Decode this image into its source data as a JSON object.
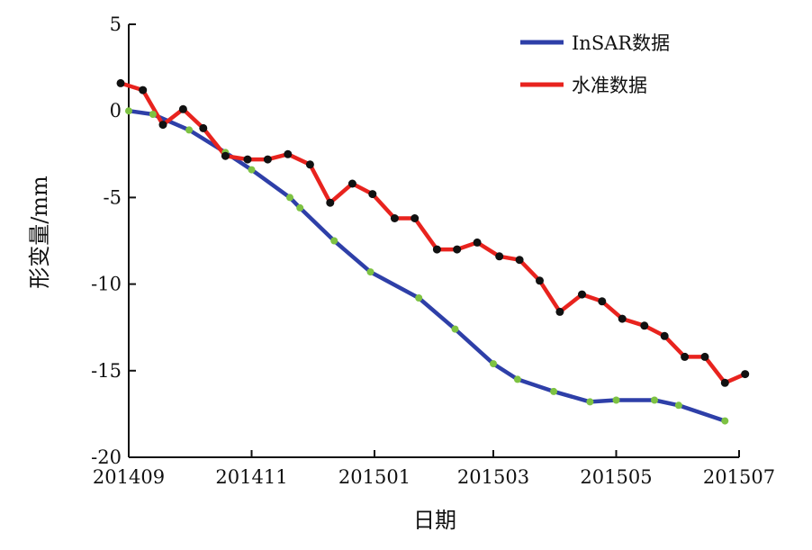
{
  "chart_data": {
    "type": "line",
    "title": "",
    "xlabel": "日期",
    "ylabel": "形变量/mm",
    "x_ticks": [
      "201409",
      "201411",
      "201501",
      "201503",
      "201505",
      "201507"
    ],
    "y_ticks": [
      "5",
      "0",
      "-5",
      "-10",
      "-15",
      "-20"
    ],
    "ylim": [
      -20,
      5
    ],
    "xlim": [
      "2014-09-01",
      "2015-07-01"
    ],
    "grid": false,
    "legend_position": "top-right",
    "series": [
      {
        "name": "InSAR数据",
        "color": "#2E3FA8",
        "marker_color": "#7DC242",
        "points": [
          {
            "x": "2014-09-01",
            "y": 0.0
          },
          {
            "x": "2014-09-13",
            "y": -0.2
          },
          {
            "x": "2014-10-01",
            "y": -1.1
          },
          {
            "x": "2014-10-19",
            "y": -2.4
          },
          {
            "x": "2014-11-01",
            "y": -3.4
          },
          {
            "x": "2014-11-20",
            "y": -5.0
          },
          {
            "x": "2014-11-25",
            "y": -5.6
          },
          {
            "x": "2014-12-12",
            "y": -7.5
          },
          {
            "x": "2014-12-30",
            "y": -9.3
          },
          {
            "x": "2015-01-23",
            "y": -10.8
          },
          {
            "x": "2015-02-10",
            "y": -12.6
          },
          {
            "x": "2015-03-01",
            "y": -14.6
          },
          {
            "x": "2015-03-13",
            "y": -15.5
          },
          {
            "x": "2015-03-31",
            "y": -16.2
          },
          {
            "x": "2015-04-18",
            "y": -16.8
          },
          {
            "x": "2015-05-01",
            "y": -16.7
          },
          {
            "x": "2015-05-20",
            "y": -16.7
          },
          {
            "x": "2015-06-01",
            "y": -17.0
          },
          {
            "x": "2015-06-24",
            "y": -17.9
          }
        ]
      },
      {
        "name": "水准数据",
        "color": "#E8231E",
        "marker_color": "#111111",
        "points": [
          {
            "x": "2014-08-28",
            "y": 1.6
          },
          {
            "x": "2014-09-08",
            "y": 1.2
          },
          {
            "x": "2014-09-18",
            "y": -0.8
          },
          {
            "x": "2014-09-28",
            "y": 0.1
          },
          {
            "x": "2014-10-08",
            "y": -1.0
          },
          {
            "x": "2014-10-19",
            "y": -2.6
          },
          {
            "x": "2014-10-30",
            "y": -2.8
          },
          {
            "x": "2014-11-09",
            "y": -2.8
          },
          {
            "x": "2014-11-19",
            "y": -2.5
          },
          {
            "x": "2014-11-30",
            "y": -3.1
          },
          {
            "x": "2014-12-10",
            "y": -5.3
          },
          {
            "x": "2014-12-21",
            "y": -4.2
          },
          {
            "x": "2014-12-31",
            "y": -4.8
          },
          {
            "x": "2015-01-11",
            "y": -6.2
          },
          {
            "x": "2015-01-21",
            "y": -6.2
          },
          {
            "x": "2015-02-01",
            "y": -8.0
          },
          {
            "x": "2015-02-11",
            "y": -8.0
          },
          {
            "x": "2015-02-21",
            "y": -7.6
          },
          {
            "x": "2015-03-04",
            "y": -8.4
          },
          {
            "x": "2015-03-14",
            "y": -8.6
          },
          {
            "x": "2015-03-24",
            "y": -9.8
          },
          {
            "x": "2015-04-03",
            "y": -11.6
          },
          {
            "x": "2015-04-14",
            "y": -10.6
          },
          {
            "x": "2015-04-24",
            "y": -11.0
          },
          {
            "x": "2015-05-04",
            "y": -12.0
          },
          {
            "x": "2015-05-15",
            "y": -12.4
          },
          {
            "x": "2015-05-25",
            "y": -13.0
          },
          {
            "x": "2015-06-04",
            "y": -14.2
          },
          {
            "x": "2015-06-14",
            "y": -14.2
          },
          {
            "x": "2015-06-24",
            "y": -15.7
          },
          {
            "x": "2015-07-04",
            "y": -15.2
          }
        ]
      }
    ]
  }
}
